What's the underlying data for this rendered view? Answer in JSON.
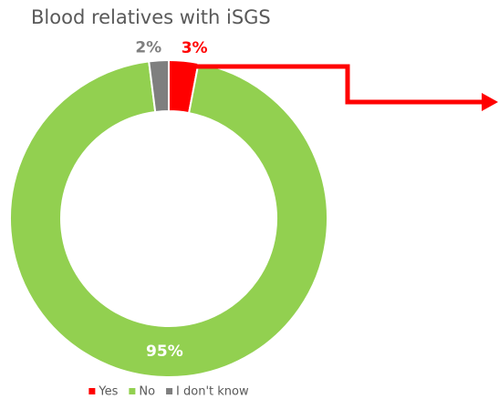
{
  "chart_data": {
    "type": "donut",
    "title": "Blood relatives with iSGS",
    "categories": [
      "Yes",
      "No",
      "I don't know"
    ],
    "values": [
      3,
      95,
      2
    ],
    "value_labels": [
      "3%",
      "95%",
      "2%"
    ],
    "colors": [
      "#ff0000",
      "#92d050",
      "#7f7f7f"
    ],
    "legend": "bottom"
  }
}
